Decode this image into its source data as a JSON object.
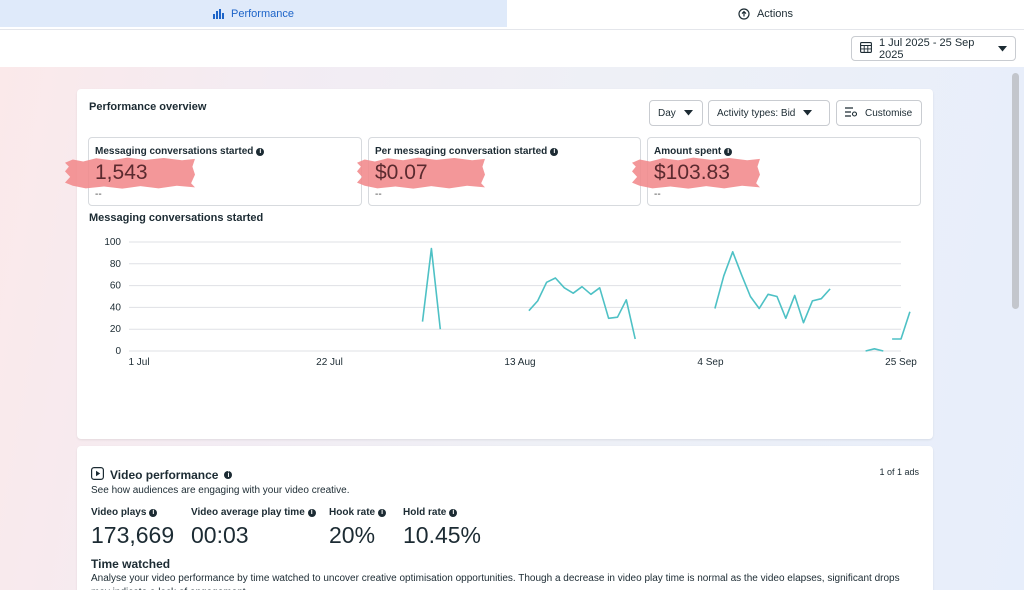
{
  "tabs": [
    {
      "label": "Performance",
      "icon": "bar-chart-icon",
      "active": true
    },
    {
      "label": "Actions",
      "icon": "arrow-up-circle-icon",
      "active": false
    }
  ],
  "date_range": {
    "label": "1 Jul 2025 - 25 Sep 2025",
    "icon": "calendar-icon"
  },
  "overview": {
    "title": "Performance overview",
    "controls": {
      "day": "Day",
      "activity": "Activity types: Bid",
      "customise": "Customise"
    },
    "metrics": [
      {
        "label": "Messaging conversations started",
        "value": "1,543",
        "sub": "--"
      },
      {
        "label": "Per messaging conversation started",
        "value": "$0.07",
        "sub": "--"
      },
      {
        "label": "Amount spent",
        "value": "$103.83",
        "sub": "--"
      }
    ]
  },
  "chart_data": {
    "type": "line",
    "title": "Messaging conversations started",
    "ylim": [
      0,
      100
    ],
    "yticks": [
      "100",
      "80",
      "60",
      "40",
      "20",
      "0"
    ],
    "xticks": [
      "1 Jul",
      "22 Jul",
      "13 Aug",
      "4 Sep",
      "25 Sep"
    ],
    "xrange": [
      "2025-07-01",
      "2025-09-25"
    ],
    "line_color": "#4ec1c5",
    "grid": true,
    "segments": [
      [
        [
          "2025-08-02",
          27
        ],
        [
          "2025-08-03",
          94
        ],
        [
          "2025-08-04",
          20
        ]
      ],
      [
        [
          "2025-08-14",
          37
        ],
        [
          "2025-08-15",
          46
        ],
        [
          "2025-08-16",
          63
        ],
        [
          "2025-08-17",
          67
        ],
        [
          "2025-08-18",
          58
        ],
        [
          "2025-08-19",
          53
        ],
        [
          "2025-08-20",
          59
        ],
        [
          "2025-08-21",
          52
        ],
        [
          "2025-08-22",
          58
        ],
        [
          "2025-08-23",
          30
        ],
        [
          "2025-08-24",
          31
        ],
        [
          "2025-08-25",
          47
        ],
        [
          "2025-08-26",
          11
        ]
      ],
      [
        [
          "2025-09-04",
          39
        ],
        [
          "2025-09-05",
          69
        ],
        [
          "2025-09-06",
          91
        ],
        [
          "2025-09-07",
          70
        ],
        [
          "2025-09-08",
          50
        ],
        [
          "2025-09-09",
          39
        ],
        [
          "2025-09-10",
          52
        ],
        [
          "2025-09-11",
          50
        ],
        [
          "2025-09-12",
          30
        ],
        [
          "2025-09-13",
          51
        ],
        [
          "2025-09-14",
          26
        ],
        [
          "2025-09-15",
          46
        ],
        [
          "2025-09-16",
          48
        ],
        [
          "2025-09-17",
          57
        ]
      ],
      [
        [
          "2025-09-21",
          0
        ],
        [
          "2025-09-22",
          2
        ],
        [
          "2025-09-23",
          0
        ]
      ],
      [
        [
          "2025-09-24",
          11
        ],
        [
          "2025-09-25",
          11
        ],
        [
          "2025-09-26",
          36
        ]
      ]
    ]
  },
  "video": {
    "title": "Video performance",
    "subtitle": "See how audiences are engaging with your video creative.",
    "ads_count": "1 of 1 ads",
    "stats": [
      {
        "label": "Video plays",
        "value": "173,669"
      },
      {
        "label": "Video average play time",
        "value": "00:03"
      },
      {
        "label": "Hook rate",
        "value": "20%"
      },
      {
        "label": "Hold rate",
        "value": "10.45%"
      }
    ],
    "time_watched_title": "Time watched",
    "time_watched_text": "Analyse your video performance by time watched to uncover creative optimisation opportunities. Though a decrease in video play time is normal as the video elapses, significant drops may indicate a lack of engagement."
  }
}
